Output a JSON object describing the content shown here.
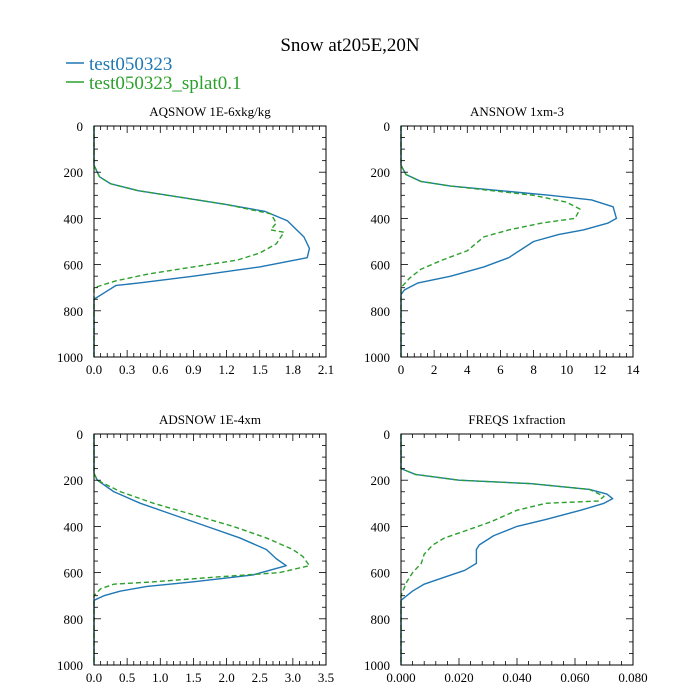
{
  "figure": {
    "title": "Snow at205E,20N",
    "legend": [
      {
        "name": "test050323",
        "color": "#1f77b4",
        "dash": "solid"
      },
      {
        "name": "test050323_splat0.1",
        "color": "#2ca02c",
        "dash": "dashed"
      }
    ]
  },
  "chart_data": [
    {
      "type": "line",
      "title": "AQSNOW  1E-6xkg/kg",
      "xlim": [
        0,
        2.1
      ],
      "ylim": [
        0,
        1000
      ],
      "y_inverted": true,
      "xticks": [
        0,
        0.3,
        0.6,
        0.9,
        1.2,
        1.5,
        1.8,
        2.1
      ],
      "xtick_labels": [
        "0.0",
        "0.3",
        "0.6",
        "0.9",
        "1.2",
        "1.5",
        "1.8",
        "2.1"
      ],
      "yticks": [
        0,
        200,
        400,
        600,
        800,
        1000
      ],
      "ytick_labels": [
        "0",
        "200",
        "400",
        "600",
        "800",
        "1000"
      ],
      "series": [
        {
          "name": "test050323",
          "x": [
            0,
            0.0,
            0.05,
            0.15,
            0.4,
            0.8,
            1.2,
            1.55,
            1.75,
            1.9,
            1.95,
            1.93,
            1.5,
            0.9,
            0.4,
            0.2,
            0.1,
            0.0,
            0.0
          ],
          "y": [
            0,
            170,
            220,
            250,
            280,
            310,
            340,
            370,
            410,
            480,
            530,
            570,
            610,
            650,
            680,
            690,
            720,
            750,
            1000
          ]
        },
        {
          "name": "test050323_splat0.1",
          "x": [
            0,
            0.0,
            0.05,
            0.15,
            0.4,
            0.8,
            1.2,
            1.6,
            1.65,
            1.6,
            1.72,
            1.65,
            1.5,
            1.3,
            0.9,
            0.5,
            0.2,
            0.0,
            0.0
          ],
          "y": [
            0,
            170,
            220,
            250,
            280,
            310,
            340,
            380,
            420,
            450,
            460,
            510,
            550,
            580,
            610,
            640,
            670,
            700,
            1000
          ]
        }
      ]
    },
    {
      "type": "line",
      "title": "ANSNOW  1xm-3",
      "xlim": [
        0,
        14
      ],
      "ylim": [
        0,
        1000
      ],
      "y_inverted": true,
      "xticks": [
        0,
        2,
        4,
        6,
        8,
        10,
        12,
        14
      ],
      "xtick_labels": [
        "0",
        "2",
        "4",
        "6",
        "8",
        "10",
        "12",
        "14"
      ],
      "yticks": [
        0,
        200,
        400,
        600,
        800,
        1000
      ],
      "ytick_labels": [
        "0",
        "200",
        "400",
        "600",
        "800",
        "1000"
      ],
      "series": [
        {
          "name": "test050323",
          "x": [
            0,
            0.0,
            0.3,
            1.2,
            3.0,
            6.0,
            9.0,
            11.5,
            12.8,
            13.0,
            12.5,
            11.0,
            9.5,
            8.0,
            6.5,
            5.0,
            3.0,
            1.0,
            0.2,
            0.0,
            0.0
          ],
          "y": [
            0,
            170,
            210,
            240,
            260,
            280,
            300,
            320,
            350,
            400,
            420,
            450,
            470,
            500,
            570,
            610,
            650,
            680,
            710,
            730,
            1000
          ]
        },
        {
          "name": "test050323_splat0.1",
          "x": [
            0,
            0.0,
            0.3,
            1.2,
            3.0,
            5.5,
            8.0,
            10.0,
            10.8,
            10.5,
            8.5,
            6.5,
            5.0,
            4.0,
            2.5,
            1.2,
            0.5,
            0.0,
            0.0
          ],
          "y": [
            0,
            170,
            210,
            240,
            260,
            280,
            300,
            330,
            360,
            400,
            420,
            450,
            480,
            540,
            580,
            620,
            660,
            700,
            1000
          ]
        }
      ]
    },
    {
      "type": "line",
      "title": "ADSNOW  1E-4xm",
      "xlim": [
        0,
        3.5
      ],
      "ylim": [
        0,
        1000
      ],
      "y_inverted": true,
      "xticks": [
        0,
        0.5,
        1.0,
        1.5,
        2.0,
        2.5,
        3.0,
        3.5
      ],
      "xtick_labels": [
        "0.0",
        "0.5",
        "1.0",
        "1.5",
        "2.0",
        "2.5",
        "3.0",
        "3.5"
      ],
      "yticks": [
        0,
        200,
        400,
        600,
        800,
        1000
      ],
      "ytick_labels": [
        "0",
        "200",
        "400",
        "600",
        "800",
        "1000"
      ],
      "series": [
        {
          "name": "test050323",
          "x": [
            0,
            0.0,
            0.05,
            0.3,
            0.7,
            1.2,
            1.7,
            2.2,
            2.6,
            2.75,
            2.9,
            2.4,
            1.5,
            0.8,
            0.4,
            0.15,
            0.0,
            0.0
          ],
          "y": [
            0,
            170,
            200,
            250,
            300,
            350,
            400,
            450,
            500,
            540,
            570,
            610,
            640,
            660,
            680,
            700,
            720,
            1000
          ]
        },
        {
          "name": "test050323_splat0.1",
          "x": [
            0,
            0.0,
            0.05,
            0.4,
            0.9,
            1.5,
            2.1,
            2.6,
            3.0,
            3.15,
            3.25,
            2.8,
            1.8,
            0.9,
            0.3,
            0.1,
            0.0,
            0.0
          ],
          "y": [
            0,
            170,
            200,
            250,
            300,
            350,
            400,
            450,
            500,
            530,
            570,
            600,
            620,
            640,
            650,
            670,
            700,
            1000
          ]
        }
      ]
    },
    {
      "type": "line",
      "title": "FREQS  1xfraction",
      "xlim": [
        0,
        0.08
      ],
      "ylim": [
        0,
        1000
      ],
      "y_inverted": true,
      "xticks": [
        0,
        0.02,
        0.04,
        0.06,
        0.08
      ],
      "xtick_labels": [
        "0.000",
        "0.020",
        "0.040",
        "0.060",
        "0.080"
      ],
      "yticks": [
        0,
        200,
        400,
        600,
        800,
        1000
      ],
      "ytick_labels": [
        "0",
        "200",
        "400",
        "600",
        "800",
        "1000"
      ],
      "series": [
        {
          "name": "test050323",
          "x": [
            0,
            0.0,
            0.005,
            0.02,
            0.045,
            0.065,
            0.071,
            0.073,
            0.07,
            0.062,
            0.05,
            0.04,
            0.032,
            0.027,
            0.026,
            0.026,
            0.022,
            0.015,
            0.008,
            0.004,
            0.002,
            0.0,
            0.0
          ],
          "y": [
            0,
            150,
            175,
            200,
            215,
            240,
            260,
            280,
            300,
            330,
            370,
            400,
            440,
            480,
            500,
            560,
            590,
            620,
            650,
            680,
            700,
            720,
            1000
          ]
        },
        {
          "name": "test050323_splat0.1",
          "x": [
            0,
            0.0,
            0.005,
            0.02,
            0.045,
            0.065,
            0.07,
            0.068,
            0.05,
            0.04,
            0.031,
            0.022,
            0.015,
            0.011,
            0.008,
            0.007,
            0.004,
            0.002,
            0.0,
            0.0
          ],
          "y": [
            0,
            150,
            175,
            200,
            215,
            240,
            270,
            290,
            300,
            330,
            380,
            420,
            450,
            480,
            520,
            560,
            600,
            640,
            700,
            1000
          ]
        }
      ]
    }
  ]
}
